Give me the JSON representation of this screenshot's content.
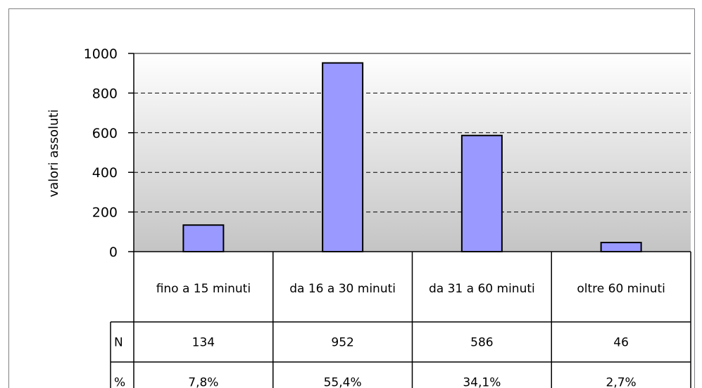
{
  "chart_data": {
    "type": "bar",
    "title": "",
    "xlabel": "",
    "ylabel": "valori assoluti",
    "ylim": [
      0,
      1000
    ],
    "yticks": [
      0,
      200,
      400,
      600,
      800,
      1000
    ],
    "grid": true,
    "categories": [
      "fino a 15 minuti",
      "da 16 a 30 minuti",
      "da 31 a 60 minuti",
      "oltre 60 minuti"
    ],
    "series": [
      {
        "values": [
          134,
          952,
          586,
          46
        ],
        "color": "#9999ff"
      }
    ],
    "table": {
      "rows": [
        {
          "label": "N",
          "values": [
            "134",
            "952",
            "586",
            "46"
          ]
        },
        {
          "label": "%",
          "values": [
            "7,8%",
            "55,4%",
            "34,1%",
            "2,7%"
          ]
        }
      ]
    }
  }
}
